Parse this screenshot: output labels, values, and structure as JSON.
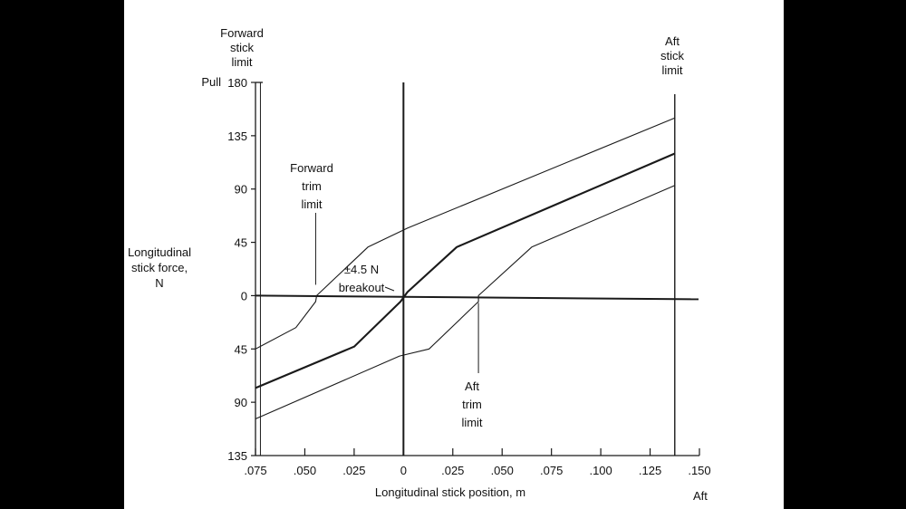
{
  "chart_data": {
    "type": "line",
    "title": "",
    "xlabel": "Longitudinal stick position, m",
    "ylabel": [
      "Longitudinal",
      "stick force,",
      "N"
    ],
    "x_ticks": [
      {
        "value": -0.075,
        "label": ".075"
      },
      {
        "value": -0.05,
        "label": ".050"
      },
      {
        "value": -0.025,
        "label": ".025"
      },
      {
        "value": 0,
        "label": "0"
      },
      {
        "value": 0.025,
        "label": ".025"
      },
      {
        "value": 0.05,
        "label": ".050"
      },
      {
        "value": 0.075,
        "label": ".075"
      },
      {
        "value": 0.1,
        "label": ".100"
      },
      {
        "value": 0.125,
        "label": ".125"
      },
      {
        "value": 0.15,
        "label": ".150"
      }
    ],
    "y_ticks": [
      {
        "value": 180,
        "label": "180"
      },
      {
        "value": 135,
        "label": "135"
      },
      {
        "value": 90,
        "label": "90"
      },
      {
        "value": 45,
        "label": "45"
      },
      {
        "value": 0,
        "label": "0"
      },
      {
        "value": -45,
        "label": "45"
      },
      {
        "value": -90,
        "label": "90"
      },
      {
        "value": -135,
        "label": "135"
      }
    ],
    "xlim": [
      -0.075,
      0.15
    ],
    "ylim": [
      -135,
      180
    ],
    "y_top_label": "Pull",
    "x_right_label": "Aft",
    "grid": false,
    "series": [
      {
        "points": [
          [
            -0.075,
            -45
          ],
          [
            -0.0545,
            -27
          ],
          [
            -0.0445,
            -5
          ],
          [
            -0.044,
            0
          ],
          [
            -0.018,
            41
          ],
          [
            0.002,
            57
          ],
          [
            0.1375,
            150
          ]
        ],
        "weight": "thin"
      },
      {
        "points": [
          [
            -0.075,
            -78
          ],
          [
            -0.025,
            -43
          ],
          [
            -0.0015,
            -5
          ],
          [
            0.002,
            3
          ],
          [
            0.027,
            41
          ],
          [
            0.1375,
            120
          ]
        ],
        "weight": "bold"
      },
      {
        "points": [
          [
            -0.075,
            -104
          ],
          [
            -0.002,
            -51
          ],
          [
            0.013,
            -45
          ],
          [
            0.038,
            -5
          ],
          [
            0.038,
            0
          ],
          [
            0.065,
            41
          ],
          [
            0.1375,
            93
          ]
        ],
        "weight": "thin"
      }
    ],
    "vertical_limits": [
      {
        "x": -0.0725,
        "label": [
          "Forward",
          "stick",
          "limit"
        ]
      },
      {
        "x": 0.1375,
        "label": [
          "Aft",
          "stick",
          "limit"
        ]
      }
    ],
    "annotations": [
      {
        "text": [
          "Forward",
          "trim",
          "limit"
        ]
      },
      {
        "text": [
          "±4.5 N",
          "breakout"
        ]
      },
      {
        "text": [
          "Aft",
          "trim",
          "limit"
        ]
      }
    ]
  }
}
